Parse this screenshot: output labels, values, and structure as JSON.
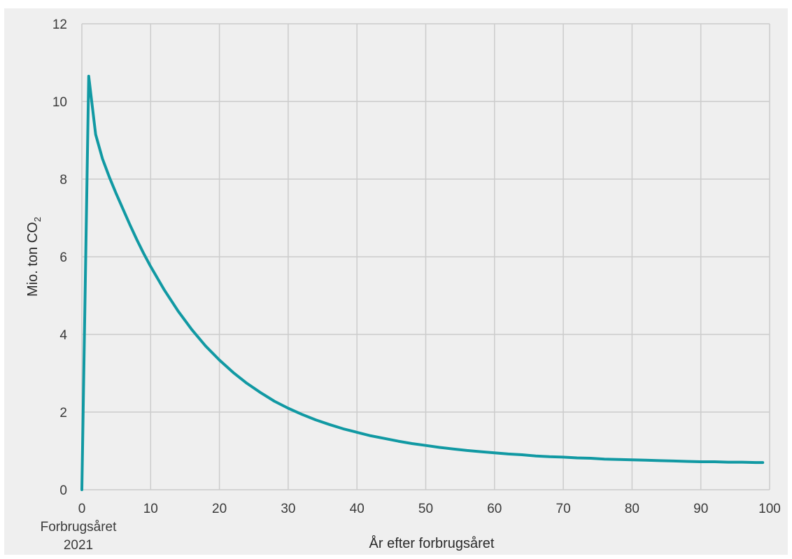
{
  "chart_data": {
    "type": "line",
    "xlabel": "År efter forbrugsåret",
    "ylabel": "Mio. ton CO",
    "ylabel_subscript": "2",
    "x_origin_label_line1": "Forbrugsåret",
    "x_origin_label_line2": "2021",
    "xlim": [
      0,
      100
    ],
    "ylim": [
      0,
      12
    ],
    "x_ticks": [
      0,
      10,
      20,
      30,
      40,
      50,
      60,
      70,
      80,
      90,
      100
    ],
    "y_ticks": [
      0,
      2,
      4,
      6,
      8,
      10,
      12
    ],
    "grid": true,
    "colors": {
      "line": "#1199a3",
      "grid": "#cccccc",
      "background": "#efefef"
    },
    "series": [
      {
        "x": [
          0,
          1,
          2,
          3,
          4,
          5,
          6,
          7,
          8,
          9,
          10,
          12,
          14,
          16,
          18,
          20,
          22,
          24,
          26,
          28,
          30,
          32,
          34,
          36,
          38,
          40,
          42,
          44,
          46,
          48,
          50,
          52,
          54,
          56,
          58,
          60,
          62,
          64,
          66,
          68,
          70,
          72,
          74,
          76,
          78,
          80,
          82,
          84,
          86,
          88,
          90,
          92,
          94,
          96,
          98,
          99
        ],
        "y": [
          0,
          10.65,
          9.15,
          8.52,
          8.05,
          7.62,
          7.22,
          6.82,
          6.44,
          6.08,
          5.75,
          5.14,
          4.6,
          4.12,
          3.7,
          3.34,
          3.02,
          2.74,
          2.5,
          2.28,
          2.1,
          1.94,
          1.8,
          1.68,
          1.57,
          1.48,
          1.39,
          1.32,
          1.25,
          1.19,
          1.14,
          1.09,
          1.05,
          1.01,
          0.98,
          0.95,
          0.92,
          0.9,
          0.87,
          0.85,
          0.84,
          0.82,
          0.81,
          0.79,
          0.78,
          0.77,
          0.76,
          0.75,
          0.74,
          0.73,
          0.72,
          0.72,
          0.71,
          0.71,
          0.7,
          0.7
        ]
      }
    ]
  }
}
